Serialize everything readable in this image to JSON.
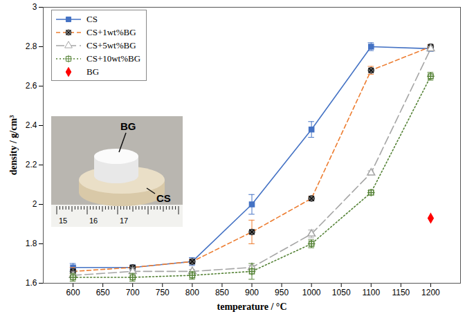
{
  "chart_data": {
    "type": "line",
    "xlabel": "temperature / °C",
    "ylabel": "density / g/cm³",
    "x": [
      600,
      700,
      800,
      900,
      1000,
      1100,
      1200
    ],
    "xlim": [
      550,
      1250
    ],
    "xticks": [
      600,
      650,
      700,
      750,
      800,
      850,
      900,
      950,
      1000,
      1050,
      1100,
      1150,
      1200
    ],
    "ylim": [
      1.6,
      3
    ],
    "yticks": [
      1.6,
      1.8,
      2,
      2.2,
      2.4,
      2.6,
      2.8,
      3
    ],
    "legend": "upper left",
    "series": [
      {
        "name": "CS",
        "color": "#4472c4",
        "marker": "square",
        "line_style": "solid",
        "values": [
          1.68,
          1.68,
          1.71,
          2.0,
          2.38,
          2.8,
          2.79
        ],
        "errors": [
          0.02,
          0.01,
          0.02,
          0.05,
          0.04,
          0.02,
          0.01
        ]
      },
      {
        "name": "CS+1wt%BG",
        "color": "#ed7d31",
        "marker": "circle-x",
        "line_style": "dashed",
        "values": [
          1.66,
          1.68,
          1.71,
          1.86,
          2.03,
          2.68,
          2.8
        ],
        "errors": [
          0.02,
          0.01,
          0.01,
          0.06,
          0.01,
          0.02,
          0.01
        ]
      },
      {
        "name": "CS+5wt%BG",
        "color": "#a5a5a5",
        "marker": "triangle-open",
        "line_style": "longdash",
        "values": [
          1.64,
          1.66,
          1.66,
          1.68,
          1.85,
          2.16,
          2.79
        ],
        "errors": [
          0.01,
          0.01,
          0.01,
          0.01,
          0.02,
          0.01,
          0.01
        ]
      },
      {
        "name": "CS+10wt%BG",
        "color": "#548235",
        "marker": "square-plus",
        "line_style": "dotted",
        "values": [
          1.63,
          1.63,
          1.64,
          1.66,
          1.8,
          2.06,
          2.65
        ],
        "errors": [
          0.02,
          0.02,
          0.02,
          0.04,
          0.02,
          0.01,
          0.02
        ]
      },
      {
        "name": "BG",
        "type": "scatter",
        "color": "#ff0000",
        "marker": "diamond",
        "line_style": "none",
        "values": [
          null,
          null,
          null,
          null,
          null,
          null,
          1.93
        ],
        "errors": [
          null,
          null,
          null,
          null,
          null,
          null,
          null
        ]
      }
    ],
    "annotations": [
      "BG",
      "CS",
      "15",
      "16",
      "17"
    ]
  }
}
